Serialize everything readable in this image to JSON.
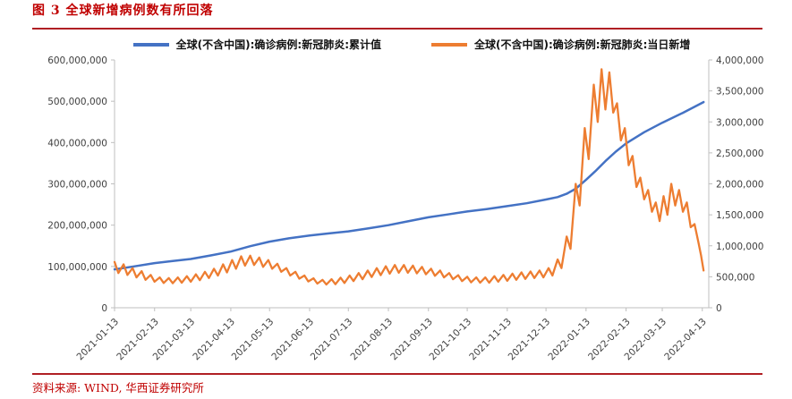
{
  "page": {
    "title": "图 3  全球新增病例数有所回落",
    "source": "资料来源: WIND, 华西证券研究所",
    "rule_color": "#b01f24",
    "text_color": "#c00000"
  },
  "chart_data": {
    "type": "line",
    "title": "图 3  全球新增病例数有所回落",
    "grid": false,
    "legend_position": "top-center",
    "x_tick_labels": [
      "2021-01-13",
      "2021-02-13",
      "2021-03-13",
      "2021-04-13",
      "2021-05-13",
      "2021-06-13",
      "2021-07-13",
      "2021-08-13",
      "2021-09-13",
      "2021-10-13",
      "2021-11-13",
      "2021-12-13",
      "2022-01-13",
      "2022-02-13",
      "2022-03-13",
      "2022-04-13"
    ],
    "x_tick_days": [
      0,
      31,
      59,
      90,
      120,
      151,
      181,
      212,
      243,
      273,
      304,
      334,
      365,
      396,
      424,
      455
    ],
    "x_domain": [
      0,
      460
    ],
    "left_axis": {
      "max": 600000000,
      "tick_values": [
        0,
        100000000,
        200000000,
        300000000,
        400000000,
        500000000,
        600000000
      ],
      "tick_labels": [
        "0",
        "100,000,000",
        "200,000,000",
        "300,000,000",
        "400,000,000",
        "500,000,000",
        "600,000,000"
      ]
    },
    "right_axis": {
      "max": 4000000,
      "tick_values": [
        0,
        500000,
        1000000,
        1500000,
        2000000,
        2500000,
        3000000,
        3500000,
        4000000
      ],
      "tick_labels": [
        "0",
        "500,000",
        "1,000,000",
        "1,500,000",
        "2,000,000",
        "2,500,000",
        "3,000,000",
        "3,500,000",
        "4,000,000"
      ]
    },
    "series": [
      {
        "name": "全球(不含中国):确诊病例:新冠肺炎:累计值",
        "axis": "left",
        "color": "#4472c4",
        "width": 2.5,
        "points": [
          [
            0,
            93000000
          ],
          [
            15,
            100000000
          ],
          [
            31,
            108000000
          ],
          [
            45,
            113000000
          ],
          [
            59,
            118000000
          ],
          [
            75,
            127000000
          ],
          [
            90,
            136000000
          ],
          [
            105,
            149000000
          ],
          [
            120,
            160000000
          ],
          [
            135,
            168000000
          ],
          [
            151,
            175000000
          ],
          [
            166,
            180000000
          ],
          [
            181,
            185000000
          ],
          [
            196,
            192000000
          ],
          [
            212,
            200000000
          ],
          [
            228,
            210000000
          ],
          [
            243,
            219000000
          ],
          [
            258,
            226000000
          ],
          [
            273,
            233000000
          ],
          [
            288,
            239000000
          ],
          [
            304,
            246000000
          ],
          [
            319,
            253000000
          ],
          [
            334,
            262000000
          ],
          [
            343,
            268000000
          ],
          [
            350,
            276000000
          ],
          [
            357,
            288000000
          ],
          [
            365,
            310000000
          ],
          [
            372,
            330000000
          ],
          [
            380,
            355000000
          ],
          [
            388,
            378000000
          ],
          [
            396,
            398000000
          ],
          [
            410,
            425000000
          ],
          [
            424,
            448000000
          ],
          [
            440,
            472000000
          ],
          [
            456,
            498000000
          ]
        ]
      },
      {
        "name": "全球(不含中国):确诊病例:新冠肺炎:当日新增",
        "axis": "right",
        "color": "#ed7d31",
        "width": 2.3,
        "points": [
          [
            0,
            740000
          ],
          [
            3,
            560000
          ],
          [
            7,
            700000
          ],
          [
            10,
            530000
          ],
          [
            14,
            640000
          ],
          [
            17,
            490000
          ],
          [
            21,
            590000
          ],
          [
            24,
            450000
          ],
          [
            28,
            530000
          ],
          [
            31,
            420000
          ],
          [
            35,
            490000
          ],
          [
            38,
            400000
          ],
          [
            42,
            480000
          ],
          [
            45,
            395000
          ],
          [
            49,
            490000
          ],
          [
            52,
            405000
          ],
          [
            56,
            510000
          ],
          [
            59,
            420000
          ],
          [
            63,
            540000
          ],
          [
            66,
            445000
          ],
          [
            70,
            580000
          ],
          [
            73,
            480000
          ],
          [
            77,
            630000
          ],
          [
            80,
            520000
          ],
          [
            84,
            700000
          ],
          [
            87,
            570000
          ],
          [
            91,
            770000
          ],
          [
            94,
            630000
          ],
          [
            98,
            830000
          ],
          [
            101,
            680000
          ],
          [
            105,
            840000
          ],
          [
            108,
            690000
          ],
          [
            112,
            810000
          ],
          [
            115,
            660000
          ],
          [
            119,
            770000
          ],
          [
            122,
            630000
          ],
          [
            126,
            710000
          ],
          [
            129,
            580000
          ],
          [
            133,
            640000
          ],
          [
            136,
            520000
          ],
          [
            140,
            580000
          ],
          [
            143,
            470000
          ],
          [
            147,
            520000
          ],
          [
            150,
            425000
          ],
          [
            154,
            475000
          ],
          [
            157,
            390000
          ],
          [
            161,
            450000
          ],
          [
            164,
            375000
          ],
          [
            168,
            460000
          ],
          [
            171,
            380000
          ],
          [
            175,
            485000
          ],
          [
            178,
            400000
          ],
          [
            182,
            520000
          ],
          [
            185,
            430000
          ],
          [
            189,
            560000
          ],
          [
            192,
            460000
          ],
          [
            196,
            600000
          ],
          [
            199,
            495000
          ],
          [
            203,
            640000
          ],
          [
            206,
            525000
          ],
          [
            210,
            670000
          ],
          [
            213,
            550000
          ],
          [
            217,
            690000
          ],
          [
            220,
            565000
          ],
          [
            224,
            690000
          ],
          [
            227,
            565000
          ],
          [
            231,
            680000
          ],
          [
            234,
            555000
          ],
          [
            238,
            660000
          ],
          [
            241,
            540000
          ],
          [
            245,
            630000
          ],
          [
            248,
            515000
          ],
          [
            252,
            600000
          ],
          [
            255,
            490000
          ],
          [
            259,
            560000
          ],
          [
            262,
            460000
          ],
          [
            266,
            525000
          ],
          [
            269,
            430000
          ],
          [
            273,
            500000
          ],
          [
            276,
            410000
          ],
          [
            280,
            490000
          ],
          [
            283,
            405000
          ],
          [
            287,
            490000
          ],
          [
            290,
            405000
          ],
          [
            294,
            510000
          ],
          [
            297,
            420000
          ],
          [
            301,
            530000
          ],
          [
            304,
            435000
          ],
          [
            308,
            550000
          ],
          [
            311,
            450000
          ],
          [
            315,
            570000
          ],
          [
            318,
            465000
          ],
          [
            322,
            585000
          ],
          [
            325,
            480000
          ],
          [
            329,
            600000
          ],
          [
            332,
            490000
          ],
          [
            336,
            640000
          ],
          [
            339,
            520000
          ],
          [
            343,
            780000
          ],
          [
            346,
            640000
          ],
          [
            350,
            1150000
          ],
          [
            353,
            950000
          ],
          [
            357,
            2000000
          ],
          [
            360,
            1650000
          ],
          [
            364,
            2900000
          ],
          [
            367,
            2400000
          ],
          [
            371,
            3600000
          ],
          [
            374,
            3000000
          ],
          [
            377,
            3850000
          ],
          [
            380,
            3200000
          ],
          [
            383,
            3800000
          ],
          [
            386,
            3150000
          ],
          [
            389,
            3300000
          ],
          [
            392,
            2700000
          ],
          [
            395,
            2900000
          ],
          [
            398,
            2300000
          ],
          [
            401,
            2450000
          ],
          [
            404,
            1950000
          ],
          [
            407,
            2100000
          ],
          [
            410,
            1750000
          ],
          [
            413,
            1900000
          ],
          [
            416,
            1550000
          ],
          [
            419,
            1700000
          ],
          [
            422,
            1400000
          ],
          [
            425,
            1800000
          ],
          [
            428,
            1500000
          ],
          [
            431,
            2000000
          ],
          [
            434,
            1650000
          ],
          [
            437,
            1900000
          ],
          [
            440,
            1550000
          ],
          [
            443,
            1700000
          ],
          [
            446,
            1300000
          ],
          [
            449,
            1350000
          ],
          [
            452,
            1050000
          ],
          [
            454,
            850000
          ],
          [
            456,
            600000
          ]
        ]
      }
    ]
  }
}
